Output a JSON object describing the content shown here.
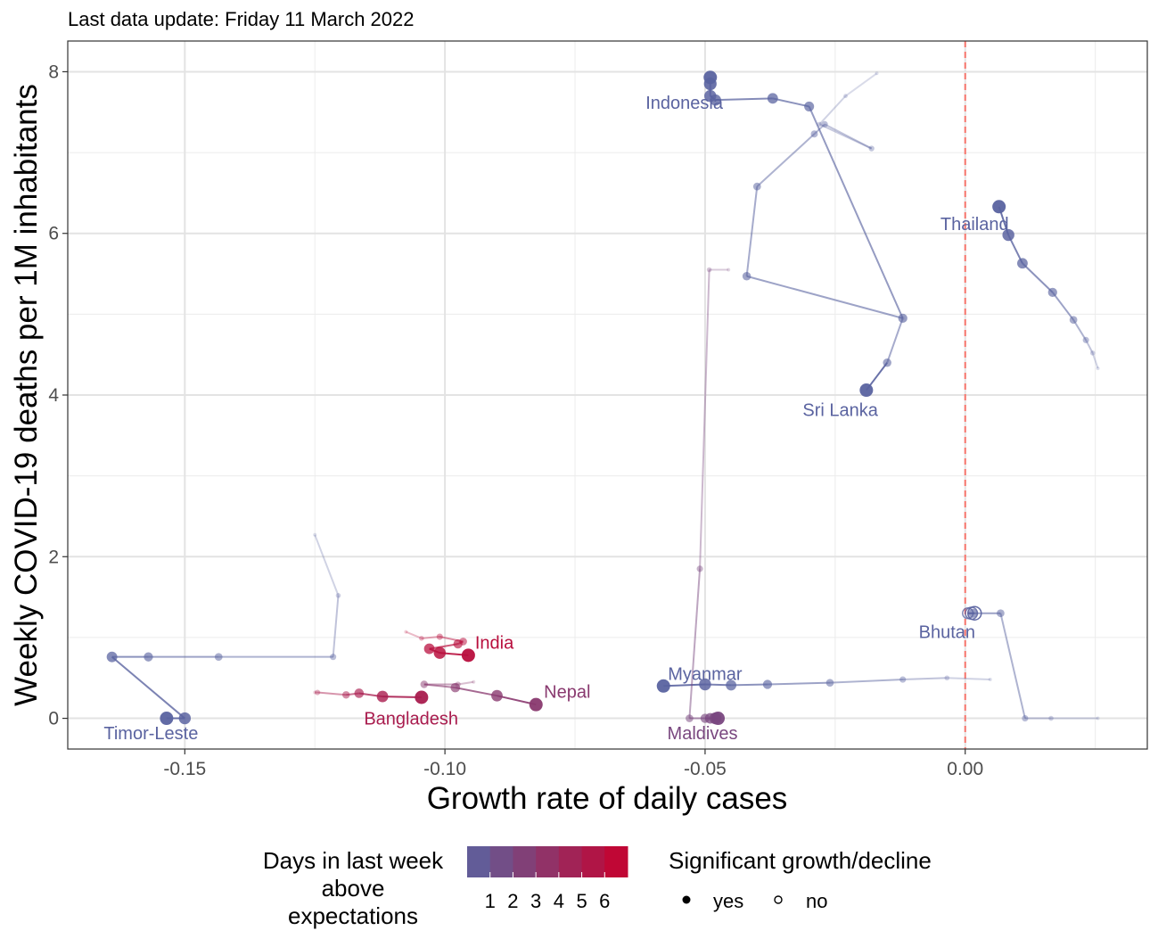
{
  "chart_data": {
    "type": "scatter",
    "subtitle": "Last data update: Friday 11 March 2022",
    "xlabel": "Growth rate of daily cases",
    "ylabel": "Weekly COVID-19 deaths per 1M inhabitants",
    "xlim": [
      -0.1725,
      0.035
    ],
    "ylim": [
      -0.38,
      8.38
    ],
    "x_ticks": [
      -0.15,
      -0.1,
      -0.05,
      0.0
    ],
    "x_tick_labels": [
      "-0.15",
      "-0.10",
      "-0.05",
      "0.00"
    ],
    "y_ticks": [
      0,
      2,
      4,
      6,
      8
    ],
    "y_tick_labels": [
      "0",
      "2",
      "4",
      "6",
      "8"
    ],
    "grid": true,
    "reference_line": {
      "x": 0.0,
      "style": "dashed",
      "color": "#f8766d"
    },
    "color_scale": {
      "low": "#5a63a0",
      "high": "#c8002d",
      "min": 0,
      "max": 7
    },
    "series": [
      {
        "name": "Indonesia",
        "label_pos": [
          -0.054,
          7.62
        ],
        "points": [
          {
            "x": -0.017,
            "y": 7.98,
            "d": 0,
            "sig": true
          },
          {
            "x": -0.023,
            "y": 7.7,
            "d": 0,
            "sig": true
          },
          {
            "x": -0.028,
            "y": 7.35,
            "d": 0,
            "sig": true
          },
          {
            "x": -0.018,
            "y": 7.05,
            "d": 0,
            "sig": true
          },
          {
            "x": -0.027,
            "y": 7.35,
            "d": 0,
            "sig": true
          },
          {
            "x": -0.029,
            "y": 7.23,
            "d": 0,
            "sig": true
          },
          {
            "x": -0.04,
            "y": 6.58,
            "d": 0,
            "sig": true
          },
          {
            "x": -0.042,
            "y": 5.47,
            "d": 0,
            "sig": true
          },
          {
            "x": -0.012,
            "y": 4.95,
            "d": 0,
            "sig": true
          },
          {
            "x": -0.03,
            "y": 7.57,
            "d": 0,
            "sig": true
          },
          {
            "x": -0.037,
            "y": 7.67,
            "d": 0,
            "sig": true
          },
          {
            "x": -0.048,
            "y": 7.65,
            "d": 0,
            "sig": true
          },
          {
            "x": -0.049,
            "y": 7.7,
            "d": 0,
            "sig": true
          },
          {
            "x": -0.049,
            "y": 7.85,
            "d": 0,
            "sig": true
          },
          {
            "x": -0.049,
            "y": 7.93,
            "d": 0,
            "sig": true
          }
        ]
      },
      {
        "name": "Sri Lanka",
        "label_pos": [
          -0.024,
          3.82
        ],
        "points": [
          {
            "x": -0.012,
            "y": 4.95,
            "d": 0,
            "sig": true
          },
          {
            "x": -0.015,
            "y": 4.4,
            "d": 0,
            "sig": true
          },
          {
            "x": -0.019,
            "y": 4.06,
            "d": 0,
            "sig": true
          }
        ]
      },
      {
        "name": "Thailand",
        "label_pos": [
          0.0018,
          6.12
        ],
        "points": [
          {
            "x": 0.0255,
            "y": 4.33,
            "d": 0,
            "sig": true
          },
          {
            "x": 0.0245,
            "y": 4.52,
            "d": 0,
            "sig": true
          },
          {
            "x": 0.0232,
            "y": 4.68,
            "d": 0,
            "sig": true
          },
          {
            "x": 0.0208,
            "y": 4.93,
            "d": 0,
            "sig": true
          },
          {
            "x": 0.0168,
            "y": 5.27,
            "d": 0,
            "sig": true
          },
          {
            "x": 0.011,
            "y": 5.63,
            "d": 0,
            "sig": true
          },
          {
            "x": 0.0083,
            "y": 5.98,
            "d": 0,
            "sig": true
          },
          {
            "x": 0.0065,
            "y": 6.33,
            "d": 0,
            "sig": true
          }
        ]
      },
      {
        "name": "Bhutan",
        "label_pos": [
          -0.0035,
          1.07
        ],
        "points": [
          {
            "x": 0.0255,
            "y": 0.0,
            "d": 0,
            "sig": true
          },
          {
            "x": 0.0165,
            "y": 0.0,
            "d": 0,
            "sig": true
          },
          {
            "x": 0.0115,
            "y": 0.0,
            "d": 0,
            "sig": true
          },
          {
            "x": 0.0068,
            "y": 1.3,
            "d": 0,
            "sig": true
          },
          {
            "x": 0.0015,
            "y": 1.3,
            "d": 0,
            "sig": true
          },
          {
            "x": 0.0005,
            "y": 1.3,
            "d": 0,
            "sig": false
          },
          {
            "x": 0.0012,
            "y": 1.3,
            "d": 0,
            "sig": false
          },
          {
            "x": 0.0018,
            "y": 1.3,
            "d": 0,
            "sig": false
          }
        ]
      },
      {
        "name": "Myanmar",
        "label_pos": [
          -0.05,
          0.55
        ],
        "points": [
          {
            "x": 0.0048,
            "y": 0.48,
            "d": 0,
            "sig": true
          },
          {
            "x": -0.0035,
            "y": 0.5,
            "d": 0,
            "sig": true
          },
          {
            "x": -0.012,
            "y": 0.48,
            "d": 0,
            "sig": true
          },
          {
            "x": -0.026,
            "y": 0.44,
            "d": 0,
            "sig": true
          },
          {
            "x": -0.038,
            "y": 0.42,
            "d": 0,
            "sig": true
          },
          {
            "x": -0.045,
            "y": 0.41,
            "d": 0,
            "sig": true
          },
          {
            "x": -0.05,
            "y": 0.42,
            "d": 0,
            "sig": true
          },
          {
            "x": -0.058,
            "y": 0.4,
            "d": 0,
            "sig": true
          }
        ]
      },
      {
        "name": "Maldives",
        "label_pos": [
          -0.0505,
          -0.18
        ],
        "points": [
          {
            "x": -0.0455,
            "y": 5.55,
            "d": 2,
            "sig": true
          },
          {
            "x": -0.0492,
            "y": 5.55,
            "d": 2,
            "sig": true
          },
          {
            "x": -0.051,
            "y": 1.85,
            "d": 2,
            "sig": true
          },
          {
            "x": -0.053,
            "y": 0.0,
            "d": 2,
            "sig": true
          },
          {
            "x": -0.05,
            "y": 0.0,
            "d": 2,
            "sig": true
          },
          {
            "x": -0.049,
            "y": 0.0,
            "d": 2,
            "sig": true
          },
          {
            "x": -0.048,
            "y": 0.0,
            "d": 2,
            "sig": true
          },
          {
            "x": -0.0475,
            "y": 0.0,
            "d": 2,
            "sig": true
          }
        ]
      },
      {
        "name": "Timor-Leste",
        "label_pos": [
          -0.1565,
          -0.18
        ],
        "points": [
          {
            "x": -0.125,
            "y": 2.27,
            "d": 0,
            "sig": true
          },
          {
            "x": -0.1205,
            "y": 1.52,
            "d": 0,
            "sig": true
          },
          {
            "x": -0.1215,
            "y": 0.76,
            "d": 0,
            "sig": true
          },
          {
            "x": -0.1435,
            "y": 0.76,
            "d": 0,
            "sig": true
          },
          {
            "x": -0.157,
            "y": 0.76,
            "d": 0,
            "sig": true
          },
          {
            "x": -0.164,
            "y": 0.76,
            "d": 0,
            "sig": true
          },
          {
            "x": -0.15,
            "y": 0.0,
            "d": 0,
            "sig": true
          },
          {
            "x": -0.1535,
            "y": 0.0,
            "d": 0,
            "sig": true
          }
        ]
      },
      {
        "name": "India",
        "label_pos": [
          -0.0905,
          0.94
        ],
        "points": [
          {
            "x": -0.1075,
            "y": 1.07,
            "d": 6,
            "sig": true
          },
          {
            "x": -0.1045,
            "y": 0.99,
            "d": 6,
            "sig": true
          },
          {
            "x": -0.101,
            "y": 1.01,
            "d": 6,
            "sig": true
          },
          {
            "x": -0.0965,
            "y": 0.95,
            "d": 6,
            "sig": true
          },
          {
            "x": -0.0975,
            "y": 0.92,
            "d": 6,
            "sig": true
          },
          {
            "x": -0.103,
            "y": 0.86,
            "d": 6,
            "sig": true
          },
          {
            "x": -0.101,
            "y": 0.81,
            "d": 6,
            "sig": true
          },
          {
            "x": -0.0955,
            "y": 0.78,
            "d": 6,
            "sig": true
          }
        ]
      },
      {
        "name": "Bangladesh",
        "label_pos": [
          -0.1065,
          0.0
        ],
        "points": [
          {
            "x": -0.125,
            "y": 0.32,
            "d": 5,
            "sig": true
          },
          {
            "x": -0.1245,
            "y": 0.32,
            "d": 5,
            "sig": true
          },
          {
            "x": -0.119,
            "y": 0.29,
            "d": 5,
            "sig": true
          },
          {
            "x": -0.1165,
            "y": 0.31,
            "d": 5,
            "sig": true
          },
          {
            "x": -0.112,
            "y": 0.27,
            "d": 5,
            "sig": true
          },
          {
            "x": -0.1045,
            "y": 0.26,
            "d": 5,
            "sig": true
          }
        ]
      },
      {
        "name": "Nepal",
        "label_pos": [
          -0.0765,
          0.33
        ],
        "points": [
          {
            "x": -0.0945,
            "y": 0.45,
            "d": 3,
            "sig": true
          },
          {
            "x": -0.0975,
            "y": 0.42,
            "d": 3,
            "sig": true
          },
          {
            "x": -0.104,
            "y": 0.42,
            "d": 3,
            "sig": true
          },
          {
            "x": -0.098,
            "y": 0.38,
            "d": 3,
            "sig": true
          },
          {
            "x": -0.09,
            "y": 0.28,
            "d": 3,
            "sig": true
          },
          {
            "x": -0.0825,
            "y": 0.17,
            "d": 3,
            "sig": true
          }
        ]
      }
    ],
    "legend": {
      "placement": "bottom",
      "color_title": "Days in last week\nabove\nexpectations",
      "color_ticks": [
        "1",
        "2",
        "3",
        "4",
        "5",
        "6"
      ],
      "shape_title": "Significant growth/decline",
      "shape_items": [
        "yes",
        "no"
      ]
    }
  }
}
